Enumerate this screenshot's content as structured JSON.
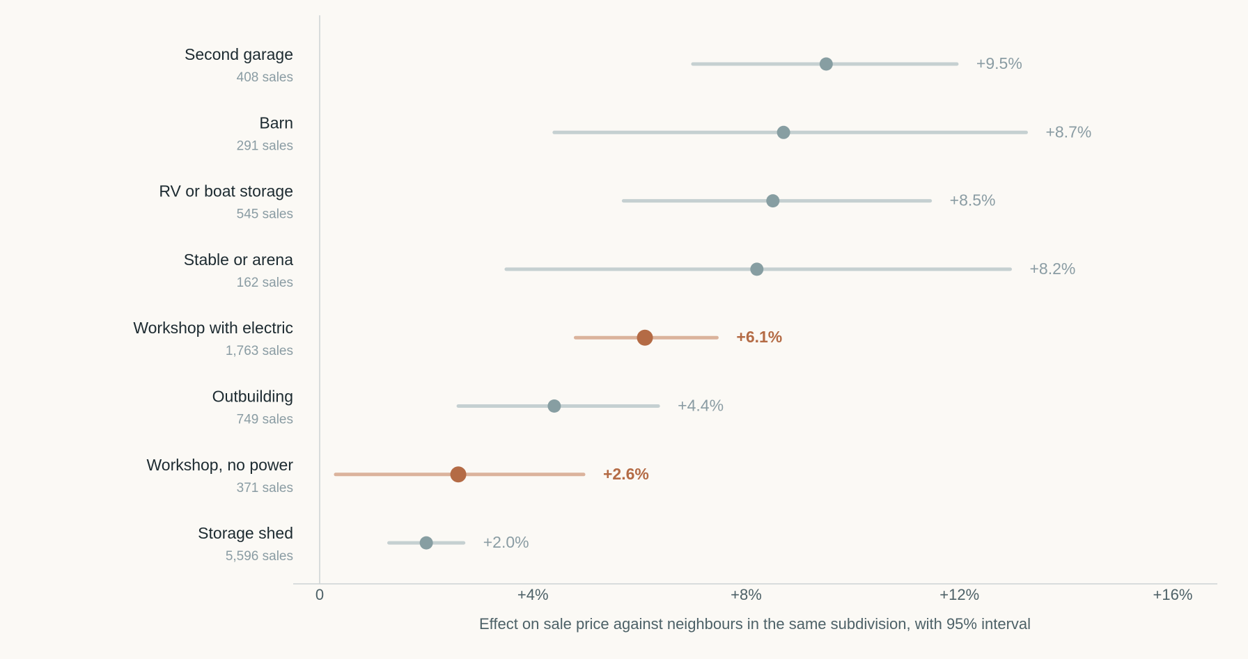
{
  "chart_data": {
    "type": "dot-interval",
    "xlabel": "Effect on sale price against neighbours in the same subdivision, with 95% interval",
    "xlim": [
      0,
      16
    ],
    "x_ticks": [
      {
        "value": 0,
        "label": "0"
      },
      {
        "value": 4,
        "label": "+4%"
      },
      {
        "value": 8,
        "label": "+8%"
      },
      {
        "value": 12,
        "label": "+12%"
      },
      {
        "value": 16,
        "label": "+16%"
      }
    ],
    "colors": {
      "normal": "#879ea2",
      "normal_interval": "#c5d0d1",
      "highlight": "#b46b45",
      "highlight_interval": "#dbb39c"
    },
    "rows": [
      {
        "category": "Second garage",
        "sales": "408 sales",
        "estimate": 9.5,
        "low": 7.0,
        "high": 11.95,
        "label": "+9.5%",
        "highlight": false
      },
      {
        "category": "Barn",
        "sales": "291 sales",
        "estimate": 8.7,
        "low": 4.4,
        "high": 13.25,
        "label": "+8.7%",
        "highlight": false
      },
      {
        "category": "RV or boat storage",
        "sales": "545 sales",
        "estimate": 8.5,
        "low": 5.7,
        "high": 11.45,
        "label": "+8.5%",
        "highlight": false
      },
      {
        "category": "Stable or arena",
        "sales": "162 sales",
        "estimate": 8.2,
        "low": 3.5,
        "high": 12.95,
        "label": "+8.2%",
        "highlight": false
      },
      {
        "category": "Workshop with electric",
        "sales": "1,763 sales",
        "estimate": 6.1,
        "low": 4.8,
        "high": 7.45,
        "label": "+6.1%",
        "highlight": true
      },
      {
        "category": "Outbuilding",
        "sales": "749 sales",
        "estimate": 4.4,
        "low": 2.6,
        "high": 6.35,
        "label": "+4.4%",
        "highlight": false
      },
      {
        "category": "Workshop, no power",
        "sales": "371 sales",
        "estimate": 2.6,
        "low": 0.3,
        "high": 4.95,
        "label": "+2.6%",
        "highlight": true
      },
      {
        "category": "Storage shed",
        "sales": "5,596 sales",
        "estimate": 2.0,
        "low": 1.3,
        "high": 2.7,
        "label": "+2.0%",
        "highlight": false
      }
    ]
  }
}
